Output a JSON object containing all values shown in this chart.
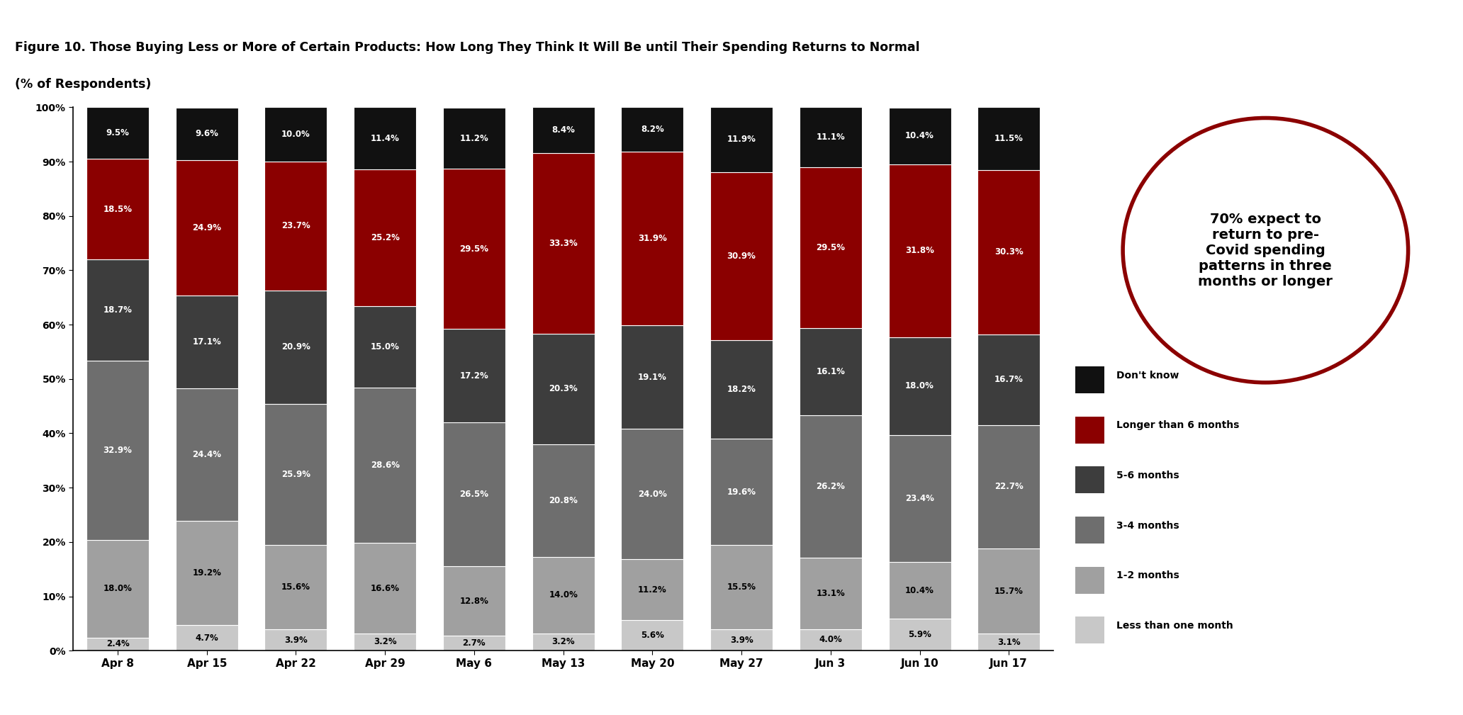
{
  "categories": [
    "Apr 8",
    "Apr 15",
    "Apr 22",
    "Apr 29",
    "May 6",
    "May 13",
    "May 20",
    "May 27",
    "Jun 3",
    "Jun 10",
    "Jun 17"
  ],
  "series": {
    "Less than one month": [
      2.4,
      4.7,
      3.9,
      3.2,
      2.7,
      3.2,
      5.6,
      3.9,
      4.0,
      5.9,
      3.1
    ],
    "1-2 months": [
      18.0,
      19.2,
      15.6,
      16.6,
      12.8,
      14.0,
      11.2,
      15.5,
      13.1,
      10.4,
      15.7
    ],
    "3-4 months": [
      32.9,
      24.4,
      25.9,
      28.6,
      26.5,
      20.8,
      24.0,
      19.6,
      26.2,
      23.4,
      22.7
    ],
    "5-6 months": [
      18.7,
      17.1,
      20.9,
      15.0,
      17.2,
      20.3,
      19.1,
      18.2,
      16.1,
      18.0,
      16.7
    ],
    "Longer than 6 months": [
      18.5,
      24.9,
      23.7,
      25.2,
      29.5,
      33.3,
      31.9,
      30.9,
      29.5,
      31.8,
      30.3
    ],
    "Don't know": [
      9.5,
      9.6,
      10.0,
      11.4,
      11.2,
      8.4,
      8.2,
      11.9,
      11.1,
      10.4,
      11.5
    ]
  },
  "colors": {
    "Less than one month": "#c8c8c8",
    "1-2 months": "#a0a0a0",
    "3-4 months": "#6e6e6e",
    "5-6 months": "#3d3d3d",
    "Longer than 6 months": "#8b0000",
    "Don't know": "#111111"
  },
  "title_line1": "Figure 10. Those Buying Less or More of Certain Products: How Long They Think It Will Be until Their Spending Returns to Normal",
  "title_line2": "(% of Respondents)",
  "ylim": [
    0,
    100
  ],
  "yticks": [
    0,
    10,
    20,
    30,
    40,
    50,
    60,
    70,
    80,
    90,
    100
  ],
  "annotation_text": "70% expect to\nreturn to pre-\nCovid spending\npatterns in three\nmonths or longer",
  "circle_color": "#8b0000",
  "header_bg": "#111111",
  "title_color": "#000000"
}
